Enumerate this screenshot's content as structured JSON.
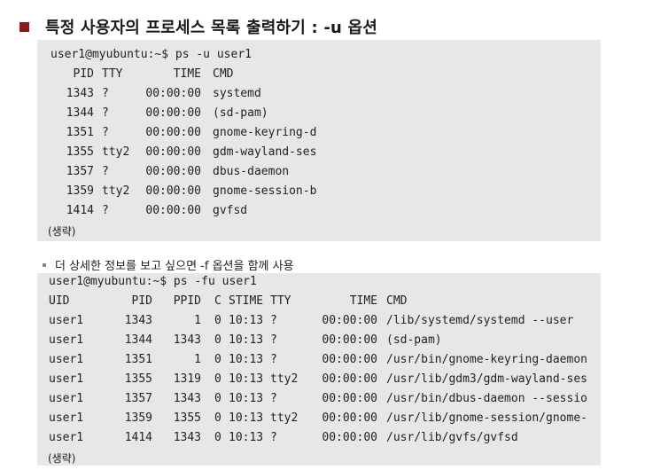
{
  "title": "특정 사용자의 프로세스 목록 출력하기 : -u 옵션",
  "block1": {
    "prompt": "user1@myubuntu:~$ ps -u user1",
    "headers": {
      "pid": "PID",
      "tty": "TTY",
      "time": "TIME",
      "cmd": "CMD"
    },
    "rows": [
      {
        "pid": "1343",
        "tty": "?",
        "time": "00:00:00",
        "cmd": "systemd"
      },
      {
        "pid": "1344",
        "tty": "?",
        "time": "00:00:00",
        "cmd": "(sd-pam)"
      },
      {
        "pid": "1351",
        "tty": "?",
        "time": "00:00:00",
        "cmd": "gnome-keyring-d"
      },
      {
        "pid": "1355",
        "tty": "tty2",
        "time": "00:00:00",
        "cmd": "gdm-wayland-ses"
      },
      {
        "pid": "1357",
        "tty": "?",
        "time": "00:00:00",
        "cmd": "dbus-daemon"
      },
      {
        "pid": "1359",
        "tty": "tty2",
        "time": "00:00:00",
        "cmd": "gnome-session-b"
      },
      {
        "pid": "1414",
        "tty": "?",
        "time": "00:00:00",
        "cmd": "gvfsd"
      }
    ],
    "omitted": "(생략)"
  },
  "subtitle": "더 상세한 정보를 보고 싶으면 -f 옵션을 함께 사용",
  "block2": {
    "prompt": "user1@myubuntu:~$ ps -fu user1",
    "headers": {
      "uid": "UID",
      "pid": "PID",
      "ppid": "PPID",
      "c": "C",
      "stime": "STIME",
      "tty": "TTY",
      "time": "TIME",
      "cmd": "CMD"
    },
    "rows": [
      {
        "uid": "user1",
        "pid": "1343",
        "ppid": "1",
        "c": "0",
        "stime": "10:13",
        "tty": "?",
        "time": "00:00:00",
        "cmd": "/lib/systemd/systemd --user"
      },
      {
        "uid": "user1",
        "pid": "1344",
        "ppid": "1343",
        "c": "0",
        "stime": "10:13",
        "tty": "?",
        "time": "00:00:00",
        "cmd": "(sd-pam)"
      },
      {
        "uid": "user1",
        "pid": "1351",
        "ppid": "1",
        "c": "0",
        "stime": "10:13",
        "tty": "?",
        "time": "00:00:00",
        "cmd": "/usr/bin/gnome-keyring-daemon"
      },
      {
        "uid": "user1",
        "pid": "1355",
        "ppid": "1319",
        "c": "0",
        "stime": "10:13",
        "tty": "tty2",
        "time": "00:00:00",
        "cmd": "/usr/lib/gdm3/gdm-wayland-ses"
      },
      {
        "uid": "user1",
        "pid": "1357",
        "ppid": "1343",
        "c": "0",
        "stime": "10:13",
        "tty": "?",
        "time": "00:00:00",
        "cmd": "/usr/bin/dbus-daemon --sessio"
      },
      {
        "uid": "user1",
        "pid": "1359",
        "ppid": "1355",
        "c": "0",
        "stime": "10:13",
        "tty": "tty2",
        "time": "00:00:00",
        "cmd": "/usr/lib/gnome-session/gnome-"
      },
      {
        "uid": "user1",
        "pid": "1414",
        "ppid": "1343",
        "c": "0",
        "stime": "10:13",
        "tty": "?",
        "time": "00:00:00",
        "cmd": "/usr/lib/gvfs/gvfsd"
      }
    ],
    "omitted": "(생략)"
  }
}
